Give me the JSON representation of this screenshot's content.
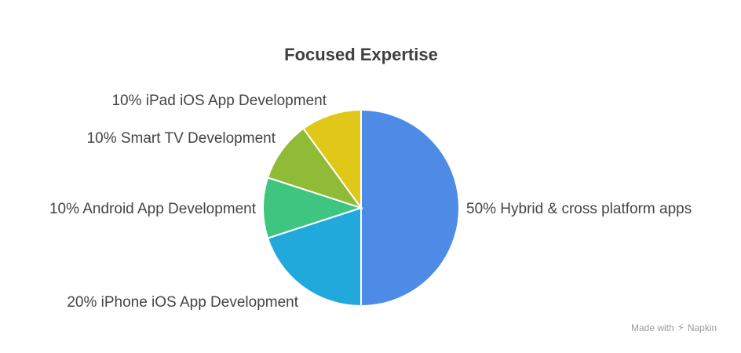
{
  "chart_data": {
    "type": "pie",
    "title": "Focused Expertise",
    "slices": [
      {
        "label": "50% Hybrid & cross platform apps",
        "value": 50,
        "color": "#4e8be6"
      },
      {
        "label": "20% iPhone iOS App Development",
        "value": 20,
        "color": "#20a9da"
      },
      {
        "label": "10% Android App Development",
        "value": 10,
        "color": "#3ec57f"
      },
      {
        "label": "10% Smart TV Development",
        "value": 10,
        "color": "#8fbb36"
      },
      {
        "label": "10% iPad iOS App Development",
        "value": 10,
        "color": "#e1c718"
      }
    ]
  },
  "footer": {
    "text": "Made with",
    "brand": "Napkin",
    "icon": "napkin-logo-icon"
  }
}
